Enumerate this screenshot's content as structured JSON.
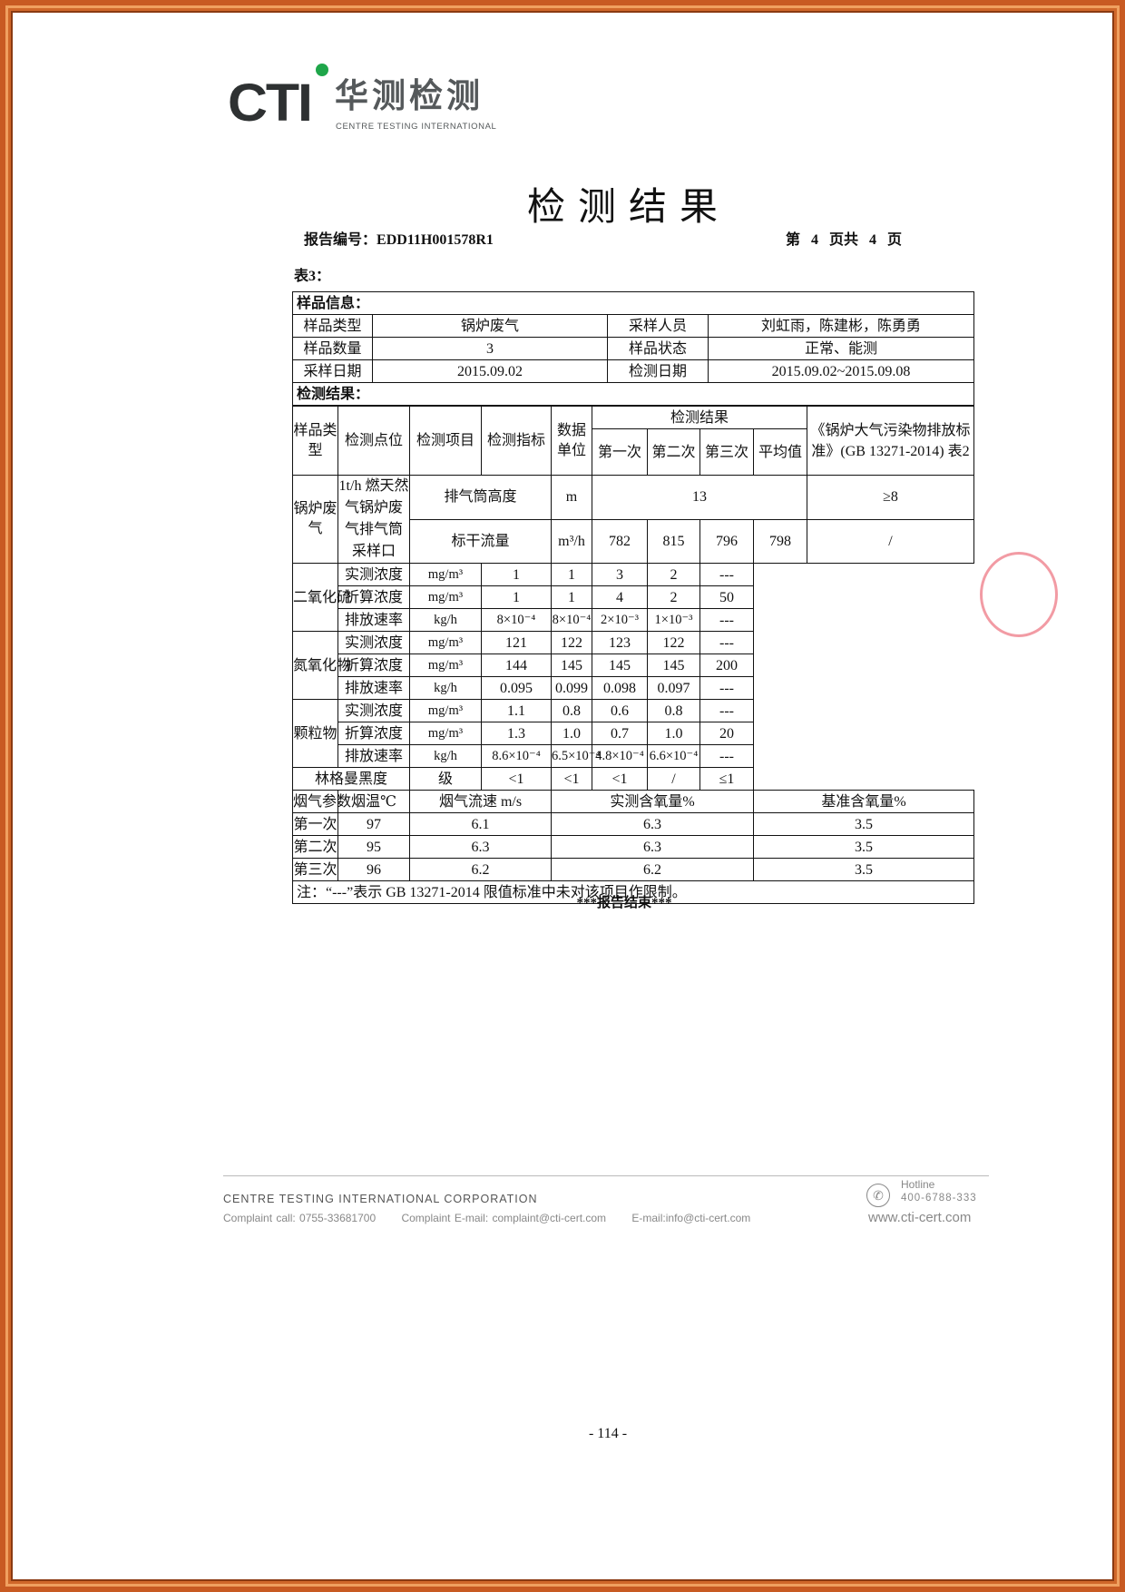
{
  "logo": {
    "mark": "CTI",
    "name_cn": "华测检测",
    "name_en": "CENTRE TESTING INTERNATIONAL",
    "accent_color": "#1fa64a"
  },
  "title": "检测结果",
  "report_no": {
    "label": "报告编号：",
    "value": "EDD11H001578R1"
  },
  "pagination": {
    "text": "第 4 页共 4 页",
    "current": 4,
    "total": 4
  },
  "table_label": "表3：",
  "sample_info": {
    "section": "样品信息：",
    "rows": [
      [
        "样品类型",
        "锅炉废气",
        "采样人员",
        "刘虹雨，陈建彬，陈勇勇"
      ],
      [
        "样品数量",
        "3",
        "样品状态",
        "正常、能测"
      ],
      [
        "采样日期",
        "2015.09.02",
        "检测日期",
        "2015.09.02~2015.09.08"
      ]
    ]
  },
  "results": {
    "section": "检测结果：",
    "headers": {
      "sample_type": "样品类型",
      "point": "检测点位",
      "item": "检测项目",
      "index": "检测指标",
      "unit": "数据单位",
      "result": "检测结果",
      "runs": [
        "第一次",
        "第二次",
        "第三次",
        "平均值"
      ],
      "standard": "《锅炉大气污染物排放标准》(GB 13271-2014) 表2"
    },
    "sample_type": "锅炉废气",
    "point": "1t/h 燃天然气锅炉废气排气筒采样口",
    "stack_height": {
      "item": "排气筒高度",
      "unit": "m",
      "value": "13",
      "limit": "≥8"
    },
    "flow": {
      "item": "标干流量",
      "unit": "m³/h",
      "values": [
        "782",
        "815",
        "796",
        "798"
      ],
      "limit": "/"
    },
    "groups": [
      {
        "name": "二氧化硫",
        "rows": [
          {
            "index": "实测浓度",
            "unit": "mg/m³",
            "values": [
              "1",
              "1",
              "3",
              "2"
            ],
            "limit": "---"
          },
          {
            "index": "折算浓度",
            "unit": "mg/m³",
            "values": [
              "1",
              "1",
              "4",
              "2"
            ],
            "limit": "50"
          },
          {
            "index": "排放速率",
            "unit": "kg/h",
            "values": [
              "8×10⁻⁴",
              "8×10⁻⁴",
              "2×10⁻³",
              "1×10⁻³"
            ],
            "limit": "---"
          }
        ]
      },
      {
        "name": "氮氧化物",
        "rows": [
          {
            "index": "实测浓度",
            "unit": "mg/m³",
            "values": [
              "121",
              "122",
              "123",
              "122"
            ],
            "limit": "---"
          },
          {
            "index": "折算浓度",
            "unit": "mg/m³",
            "values": [
              "144",
              "145",
              "145",
              "145"
            ],
            "limit": "200"
          },
          {
            "index": "排放速率",
            "unit": "kg/h",
            "values": [
              "0.095",
              "0.099",
              "0.098",
              "0.097"
            ],
            "limit": "---"
          }
        ]
      },
      {
        "name": "颗粒物",
        "rows": [
          {
            "index": "实测浓度",
            "unit": "mg/m³",
            "values": [
              "1.1",
              "0.8",
              "0.6",
              "0.8"
            ],
            "limit": "---"
          },
          {
            "index": "折算浓度",
            "unit": "mg/m³",
            "values": [
              "1.3",
              "1.0",
              "0.7",
              "1.0"
            ],
            "limit": "20"
          },
          {
            "index": "排放速率",
            "unit": "kg/h",
            "values": [
              "8.6×10⁻⁴",
              "6.5×10⁻⁴",
              "4.8×10⁻⁴",
              "6.6×10⁻⁴"
            ],
            "limit": "---"
          }
        ]
      }
    ],
    "ringelmann": {
      "item": "林格曼黑度",
      "unit": "级",
      "values": [
        "<1",
        "<1",
        "<1",
        "/"
      ],
      "limit": "≤1"
    },
    "flue": {
      "headers": [
        "烟气参数",
        "烟温℃",
        "烟气流速 m/s",
        "实测含氧量%",
        "基准含氧量%"
      ],
      "rows": [
        [
          "第一次",
          "97",
          "6.1",
          "6.3",
          "3.5"
        ],
        [
          "第二次",
          "95",
          "6.3",
          "6.3",
          "3.5"
        ],
        [
          "第三次",
          "96",
          "6.2",
          "6.2",
          "3.5"
        ]
      ]
    },
    "note": "注：“---”表示 GB 13271-2014 限值标准中未对该项目作限制。"
  },
  "end_mark": "***报告结束***",
  "footer": {
    "company": "CENTRE TESTING INTERNATIONAL CORPORATION",
    "complaint_call": "Complaint call: 0755-33681700",
    "complaint_email": "Complaint E-mail: complaint@cti-cert.com",
    "email": "E-mail:info@cti-cert.com",
    "hotline_label": "Hotline",
    "hotline": "400-6788-333",
    "website": "www.cti-cert.com"
  },
  "page_number": "- 114 -",
  "stamp_color": "#e8485a"
}
